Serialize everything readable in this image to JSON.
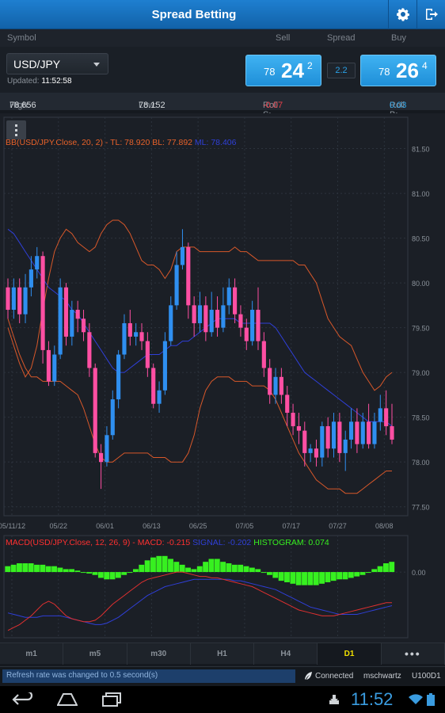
{
  "app": {
    "title": "Spread Betting"
  },
  "toolbar": {
    "settings_icon": "gear-icon",
    "logout_icon": "logout-icon"
  },
  "columns": {
    "symbol": "Symbol",
    "sell": "Sell",
    "spread": "Spread",
    "buy": "Buy"
  },
  "quote": {
    "symbol": "USD/JPY",
    "updated_label": "Updated:",
    "updated_time": "11:52:58",
    "sell": {
      "big": "78",
      "pips": "24",
      "frac": "2"
    },
    "spread": "2.2",
    "buy": {
      "big": "78",
      "pips": "26",
      "frac": "4"
    }
  },
  "stats": {
    "high_label": "High:",
    "high": "78.656",
    "low_label": "Low:",
    "low": "78.152",
    "roll_s_label": "Roll S:",
    "roll_s": "-0.07",
    "roll_b_label": "Roll B:",
    "roll_b": "0.03"
  },
  "chart_data": [
    {
      "type": "candlestick",
      "title": "BB(USD/JPY.Close, 20, 2) - TL: 78.920 BL: 77.892 ML: 78.406",
      "legend": [
        {
          "text": "BB(USD/JPY.Close, 20, 2) - TL: 78.920 BL: 77.892 ",
          "color": "#e8622a"
        },
        {
          "text": "ML: 78.406",
          "color": "#2f3fd8"
        }
      ],
      "x_ticks": [
        "05/11/12",
        "05/22",
        "06/01",
        "06/13",
        "06/25",
        "07/05",
        "07/17",
        "07/27",
        "08/08"
      ],
      "y_ticks": [
        "81.50",
        "81.00",
        "80.50",
        "80.00",
        "79.50",
        "79.00",
        "78.50",
        "78.00",
        "77.50"
      ],
      "ylim": [
        77.4,
        81.85
      ],
      "up_color": "#2f8ff0",
      "down_color": "#ff4fa3",
      "candles": [
        [
          79.95,
          79.7,
          80.05,
          79.6
        ],
        [
          79.7,
          79.95,
          80.05,
          79.6
        ],
        [
          79.95,
          79.65,
          80.05,
          79.55
        ],
        [
          79.65,
          79.95,
          80.1,
          79.55
        ],
        [
          79.95,
          80.15,
          80.3,
          79.85
        ],
        [
          80.15,
          80.3,
          80.4,
          80.05
        ],
        [
          80.3,
          79.25,
          80.35,
          79.1
        ],
        [
          79.25,
          78.9,
          79.35,
          78.85
        ],
        [
          78.9,
          79.2,
          79.3,
          78.85
        ],
        [
          79.2,
          79.95,
          80.05,
          79.15
        ],
        [
          79.95,
          79.4,
          80.0,
          79.3
        ],
        [
          79.4,
          79.7,
          79.8,
          79.3
        ],
        [
          79.7,
          79.6,
          79.8,
          79.45
        ],
        [
          79.6,
          79.45,
          79.7,
          79.35
        ],
        [
          79.45,
          79.05,
          79.55,
          78.95
        ],
        [
          79.05,
          78.1,
          79.1,
          78.05
        ],
        [
          78.1,
          78.0,
          78.2,
          77.7
        ],
        [
          78.0,
          78.3,
          78.4,
          77.95
        ],
        [
          78.3,
          78.7,
          78.8,
          78.25
        ],
        [
          78.7,
          79.2,
          79.25,
          78.6
        ],
        [
          79.2,
          79.55,
          79.65,
          79.15
        ],
        [
          79.55,
          79.4,
          79.7,
          79.3
        ],
        [
          79.4,
          79.45,
          79.55,
          79.3
        ],
        [
          79.45,
          79.35,
          79.55,
          79.25
        ],
        [
          79.35,
          79.05,
          79.45,
          78.95
        ],
        [
          79.05,
          78.65,
          79.1,
          78.6
        ],
        [
          78.65,
          78.8,
          78.9,
          78.55
        ],
        [
          78.8,
          79.35,
          79.45,
          78.75
        ],
        [
          79.35,
          79.75,
          79.85,
          79.3
        ],
        [
          79.75,
          80.2,
          80.35,
          79.7
        ],
        [
          80.2,
          80.4,
          80.6,
          80.15
        ],
        [
          80.4,
          79.75,
          80.45,
          79.6
        ],
        [
          79.75,
          79.55,
          79.85,
          79.4
        ],
        [
          79.55,
          79.75,
          79.9,
          79.45
        ],
        [
          79.75,
          79.45,
          79.85,
          79.35
        ],
        [
          79.45,
          79.7,
          79.9,
          79.4
        ],
        [
          79.7,
          79.5,
          79.85,
          79.4
        ],
        [
          79.5,
          79.75,
          79.95,
          79.45
        ],
        [
          79.75,
          79.95,
          80.05,
          79.65
        ],
        [
          79.95,
          79.65,
          80.05,
          79.55
        ],
        [
          79.65,
          79.5,
          79.75,
          79.4
        ],
        [
          79.5,
          79.35,
          79.6,
          79.25
        ],
        [
          79.35,
          79.7,
          79.8,
          79.3
        ],
        [
          79.7,
          79.35,
          79.95,
          79.25
        ],
        [
          79.35,
          79.05,
          79.45,
          78.95
        ],
        [
          79.05,
          78.75,
          79.15,
          78.65
        ],
        [
          78.75,
          78.95,
          79.05,
          78.65
        ],
        [
          78.95,
          78.75,
          79.05,
          78.65
        ],
        [
          78.75,
          78.55,
          78.85,
          78.4
        ],
        [
          78.55,
          78.4,
          78.65,
          78.3
        ],
        [
          78.4,
          78.35,
          78.55,
          78.2
        ],
        [
          78.35,
          78.1,
          78.45,
          77.95
        ],
        [
          78.1,
          78.15,
          78.2,
          78.0
        ],
        [
          78.15,
          78.05,
          78.25,
          77.95
        ],
        [
          78.05,
          78.4,
          78.45,
          77.95
        ],
        [
          78.4,
          78.15,
          78.5,
          78.05
        ],
        [
          78.15,
          78.45,
          78.55,
          78.05
        ],
        [
          78.45,
          78.1,
          78.55,
          78.0
        ],
        [
          78.1,
          78.25,
          78.35,
          77.9
        ],
        [
          78.25,
          78.45,
          78.6,
          78.15
        ],
        [
          78.45,
          78.2,
          78.6,
          78.1
        ],
        [
          78.2,
          78.45,
          78.55,
          78.15
        ],
        [
          78.45,
          78.2,
          78.65,
          78.15
        ],
        [
          78.2,
          78.45,
          78.55,
          78.15
        ],
        [
          78.45,
          78.6,
          78.75,
          78.35
        ],
        [
          78.6,
          78.4,
          78.8,
          78.3
        ],
        [
          78.4,
          78.25,
          78.65,
          78.2
        ]
      ],
      "bb_top": [
        79.5,
        79.3,
        79.1,
        78.95,
        79.05,
        79.3,
        79.7,
        80.05,
        80.35,
        80.5,
        80.6,
        80.55,
        80.45,
        80.4,
        80.35,
        80.4,
        80.55,
        80.65,
        80.7,
        80.7,
        80.65,
        80.55,
        80.4,
        80.25,
        80.2,
        80.2,
        80.15,
        80.05,
        80.15,
        80.35,
        80.4,
        80.4,
        80.4,
        80.35,
        80.35,
        80.35,
        80.35,
        80.35,
        80.35,
        80.4,
        80.35,
        80.35,
        80.3,
        80.25,
        80.25,
        80.25,
        80.25,
        80.25,
        80.25,
        80.25,
        80.2,
        80.2,
        80.1,
        80.0,
        79.8,
        79.6,
        79.5,
        79.4,
        79.35,
        79.3,
        79.15,
        79.0,
        78.9,
        78.8,
        78.85,
        78.95,
        79.0
      ],
      "bb_mid": [
        80.6,
        80.55,
        80.45,
        80.35,
        80.25,
        80.15,
        80.05,
        79.95,
        79.9,
        79.85,
        79.8,
        79.7,
        79.65,
        79.55,
        79.45,
        79.35,
        79.25,
        79.15,
        79.05,
        79.0,
        79.0,
        79.05,
        79.1,
        79.15,
        79.2,
        79.2,
        79.2,
        79.25,
        79.3,
        79.3,
        79.35,
        79.35,
        79.4,
        79.45,
        79.5,
        79.55,
        79.6,
        79.6,
        79.6,
        79.6,
        79.55,
        79.55,
        79.55,
        79.55,
        79.55,
        79.55,
        79.5,
        79.4,
        79.3,
        79.2,
        79.1,
        79.0,
        78.95,
        78.9,
        78.85,
        78.8,
        78.75,
        78.7,
        78.65,
        78.6,
        78.55,
        78.5,
        78.45,
        78.45,
        78.45,
        78.45,
        78.4
      ],
      "bb_bot": [
        79.6,
        79.4,
        79.2,
        79.05,
        78.95,
        78.95,
        78.9,
        78.9,
        78.9,
        78.9,
        78.85,
        78.8,
        78.75,
        78.6,
        78.4,
        78.2,
        78.05,
        78.0,
        78.0,
        78.05,
        78.1,
        78.1,
        78.1,
        78.1,
        78.1,
        78.05,
        78.05,
        78.05,
        78.0,
        78.0,
        78.0,
        78.1,
        78.3,
        78.6,
        78.8,
        78.9,
        78.95,
        78.95,
        78.95,
        78.9,
        78.9,
        78.9,
        78.85,
        78.85,
        78.85,
        78.8,
        78.7,
        78.55,
        78.4,
        78.25,
        78.1,
        78.0,
        77.9,
        77.8,
        77.75,
        77.7,
        77.7,
        77.7,
        77.65,
        77.65,
        77.65,
        77.7,
        77.75,
        77.8,
        77.85,
        77.9,
        77.9
      ]
    },
    {
      "type": "macd",
      "title": "MACD(USD/JPY.Close, 12, 26, 9) - MACD: -0.215 SIGNAL: -0.202 HISTOGRAM: 0.074",
      "legend": [
        {
          "text": "MACD(USD/JPY.Close, 12, 26, 9) - MACD: -0.215 ",
          "color": "#ff3030"
        },
        {
          "text": "SIGNAL: -0.202 ",
          "color": "#2f3fd8"
        },
        {
          "text": "HISTOGRAM: 0.074",
          "color": "#37f020"
        }
      ],
      "y_ticks": [
        "0.00"
      ],
      "ylim": [
        -0.45,
        0.25
      ],
      "histogram": [
        0.04,
        0.05,
        0.06,
        0.06,
        0.06,
        0.05,
        0.05,
        0.04,
        0.04,
        0.03,
        0.02,
        0.02,
        0.01,
        0.0,
        -0.01,
        -0.02,
        -0.04,
        -0.05,
        -0.05,
        -0.04,
        -0.02,
        0.0,
        0.02,
        0.05,
        0.08,
        0.1,
        0.11,
        0.11,
        0.09,
        0.07,
        0.05,
        0.03,
        0.02,
        0.04,
        0.07,
        0.09,
        0.09,
        0.07,
        0.06,
        0.05,
        0.05,
        0.04,
        0.03,
        0.02,
        0.0,
        -0.02,
        -0.04,
        -0.06,
        -0.07,
        -0.08,
        -0.09,
        -0.09,
        -0.09,
        -0.09,
        -0.08,
        -0.07,
        -0.06,
        -0.05,
        -0.05,
        -0.04,
        -0.03,
        -0.02,
        0.0,
        0.02,
        0.04,
        0.06,
        0.07
      ],
      "macd": [
        -0.4,
        -0.38,
        -0.36,
        -0.33,
        -0.3,
        -0.26,
        -0.22,
        -0.2,
        -0.22,
        -0.26,
        -0.3,
        -0.32,
        -0.33,
        -0.34,
        -0.34,
        -0.33,
        -0.3,
        -0.26,
        -0.22,
        -0.19,
        -0.16,
        -0.13,
        -0.1,
        -0.07,
        -0.05,
        -0.04,
        -0.03,
        -0.02,
        -0.01,
        0.0,
        0.0,
        -0.01,
        -0.02,
        -0.03,
        -0.03,
        -0.04,
        -0.04,
        -0.05,
        -0.06,
        -0.07,
        -0.08,
        -0.09,
        -0.1,
        -0.12,
        -0.14,
        -0.16,
        -0.18,
        -0.2,
        -0.22,
        -0.24,
        -0.26,
        -0.27,
        -0.28,
        -0.29,
        -0.3,
        -0.3,
        -0.3,
        -0.29,
        -0.28,
        -0.27,
        -0.26,
        -0.25,
        -0.24,
        -0.23,
        -0.22,
        -0.21,
        -0.21
      ],
      "signal": [
        -0.28,
        -0.29,
        -0.3,
        -0.31,
        -0.31,
        -0.31,
        -0.3,
        -0.3,
        -0.3,
        -0.3,
        -0.31,
        -0.32,
        -0.33,
        -0.34,
        -0.35,
        -0.36,
        -0.36,
        -0.35,
        -0.33,
        -0.31,
        -0.28,
        -0.25,
        -0.22,
        -0.19,
        -0.16,
        -0.14,
        -0.12,
        -0.1,
        -0.09,
        -0.08,
        -0.07,
        -0.06,
        -0.05,
        -0.05,
        -0.05,
        -0.05,
        -0.05,
        -0.05,
        -0.05,
        -0.06,
        -0.06,
        -0.07,
        -0.08,
        -0.09,
        -0.1,
        -0.11,
        -0.12,
        -0.14,
        -0.16,
        -0.18,
        -0.2,
        -0.22,
        -0.24,
        -0.25,
        -0.26,
        -0.27,
        -0.28,
        -0.29,
        -0.29,
        -0.29,
        -0.29,
        -0.28,
        -0.27,
        -0.26,
        -0.25,
        -0.24,
        -0.23
      ]
    }
  ],
  "timeframes": [
    {
      "label": "m1",
      "active": false
    },
    {
      "label": "m5",
      "active": false
    },
    {
      "label": "m30",
      "active": false
    },
    {
      "label": "H1",
      "active": false
    },
    {
      "label": "H4",
      "active": false
    },
    {
      "label": "D1",
      "active": true
    },
    {
      "label": "•••",
      "active": false
    }
  ],
  "status": {
    "message": "Refresh rate was changed to 0.5 second(s)",
    "connection": "Connected",
    "user": "mschwartz",
    "account": "U100D1"
  },
  "system": {
    "clock": "11:52"
  }
}
